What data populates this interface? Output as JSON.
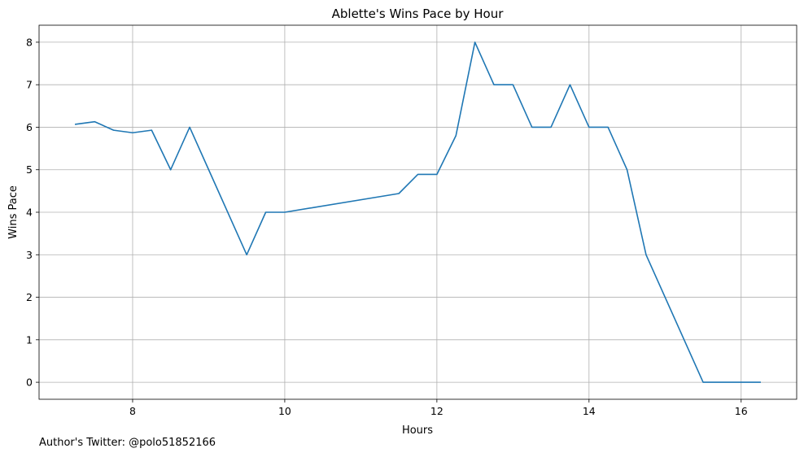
{
  "chart_data": {
    "type": "line",
    "title": "Ablette's Wins Pace by Hour",
    "xlabel": "Hours",
    "ylabel": "Wins Pace",
    "xlim": [
      6.77,
      16.73
    ],
    "ylim": [
      -0.4,
      8.4
    ],
    "xticks": [
      8,
      10,
      12,
      14,
      16
    ],
    "yticks": [
      0,
      1,
      2,
      3,
      4,
      5,
      6,
      7,
      8
    ],
    "grid": true,
    "series": [
      {
        "color": "#1f77b4",
        "x": [
          7.25,
          7.5,
          7.75,
          8.0,
          8.25,
          8.5,
          8.75,
          9.5,
          9.75,
          10.0,
          11.5,
          11.75,
          12.0,
          12.25,
          12.5,
          12.75,
          13.0,
          13.25,
          13.5,
          13.75,
          14.0,
          14.25,
          14.5,
          14.75,
          15.5,
          15.75,
          16.0,
          16.25
        ],
        "y": [
          6.07,
          6.13,
          5.93,
          5.87,
          5.93,
          5.0,
          6.0,
          3.0,
          4.0,
          4.0,
          4.44,
          4.89,
          4.89,
          5.8,
          8.0,
          7.0,
          7.0,
          6.0,
          6.0,
          7.0,
          6.0,
          6.0,
          5.0,
          3.0,
          0.0,
          0.0,
          0.0,
          0.0
        ]
      }
    ]
  },
  "footnote": "Author's Twitter: @polo51852166"
}
